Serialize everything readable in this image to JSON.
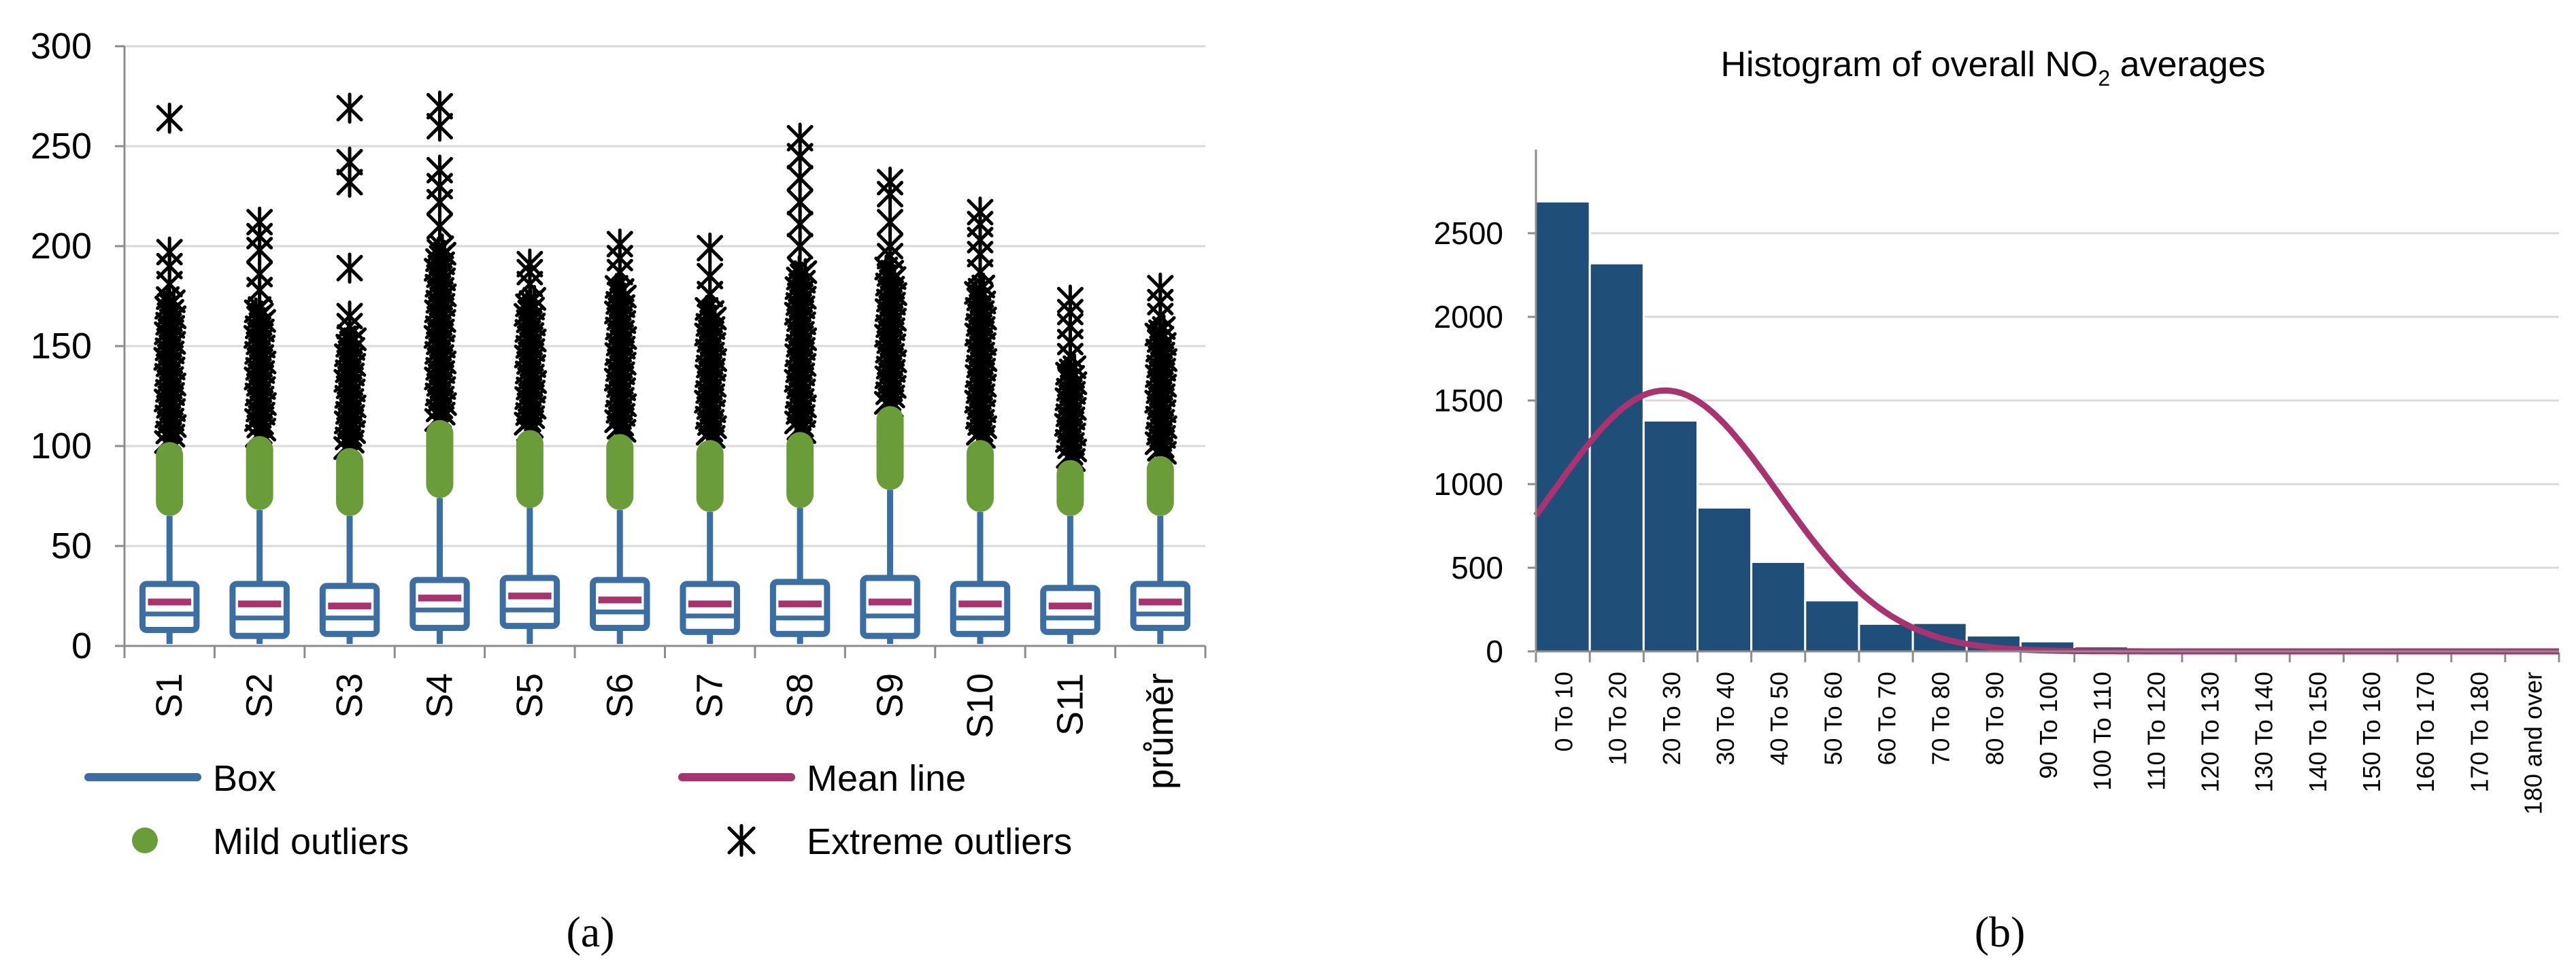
{
  "colors": {
    "box": "#3b6fa3",
    "mean": "#a8336e",
    "mild": "#6b9c3a",
    "extreme": "#000000",
    "bar": "#1f4e79",
    "bar_edge": "#ffffff",
    "curve": "#a8336e",
    "grid": "#d9d9d9",
    "axis": "#8c8c8c"
  },
  "captions": {
    "a": "(a)",
    "b": "(b)"
  },
  "chart_data": [
    {
      "type": "box",
      "title": "",
      "xlabel": "",
      "ylabel": "",
      "ylim": [
        0,
        300
      ],
      "yticks": [
        0,
        50,
        100,
        150,
        200,
        250,
        300
      ],
      "grid": true,
      "categories": [
        "S1",
        "S2",
        "S3",
        "S4",
        "S5",
        "S6",
        "S7",
        "S8",
        "S9",
        "S10",
        "S11",
        "průměr"
      ],
      "boxes": [
        {
          "q1": 8,
          "median": 16,
          "q3": 31,
          "mean": 22,
          "whisker_low": 1,
          "whisker_high": 65,
          "mild_low": 65,
          "mild_high": 102,
          "dense_top": 175,
          "extreme": [
            181,
            190,
            197,
            264
          ]
        },
        {
          "q1": 5,
          "median": 14,
          "q3": 31,
          "mean": 21,
          "whisker_low": 1,
          "whisker_high": 68,
          "mild_low": 68,
          "mild_high": 105,
          "dense_top": 170,
          "extreme": [
            178,
            186,
            198,
            205,
            212
          ]
        },
        {
          "q1": 6,
          "median": 14,
          "q3": 30,
          "mean": 20,
          "whisker_low": 1,
          "whisker_high": 65,
          "mild_low": 65,
          "mild_high": 99,
          "dense_top": 155,
          "extreme": [
            160,
            165,
            189,
            232,
            242,
            269
          ]
        },
        {
          "q1": 9,
          "median": 18,
          "q3": 33,
          "mean": 24,
          "whisker_low": 1,
          "whisker_high": 74,
          "mild_low": 74,
          "mild_high": 113,
          "dense_top": 200,
          "extreme": [
            210,
            222,
            230,
            238,
            260,
            270
          ]
        },
        {
          "q1": 10,
          "median": 18,
          "q3": 34,
          "mean": 25,
          "whisker_low": 1,
          "whisker_high": 69,
          "mild_low": 69,
          "mild_high": 108,
          "dense_top": 175,
          "extreme": [
            181,
            187,
            191
          ]
        },
        {
          "q1": 9,
          "median": 17,
          "q3": 33,
          "mean": 23,
          "whisker_low": 1,
          "whisker_high": 68,
          "mild_low": 68,
          "mild_high": 106,
          "dense_top": 180,
          "extreme": [
            187,
            194,
            201
          ]
        },
        {
          "q1": 7,
          "median": 15,
          "q3": 31,
          "mean": 21,
          "whisker_low": 1,
          "whisker_high": 67,
          "mild_low": 67,
          "mild_high": 103,
          "dense_top": 170,
          "extreme": [
            176,
            185,
            199
          ]
        },
        {
          "q1": 6,
          "median": 14,
          "q3": 32,
          "mean": 21,
          "whisker_low": 1,
          "whisker_high": 69,
          "mild_low": 69,
          "mild_high": 107,
          "dense_top": 190,
          "extreme": [
            200,
            211,
            222,
            234,
            245,
            254
          ]
        },
        {
          "q1": 5,
          "median": 15,
          "q3": 34,
          "mean": 22,
          "whisker_low": 1,
          "whisker_high": 78,
          "mild_low": 78,
          "mild_high": 120,
          "dense_top": 190,
          "extreme": [
            195,
            200,
            212,
            226,
            232
          ]
        },
        {
          "q1": 6,
          "median": 14,
          "q3": 31,
          "mean": 21,
          "whisker_low": 1,
          "whisker_high": 67,
          "mild_low": 67,
          "mild_high": 103,
          "dense_top": 180,
          "extreme": [
            187,
            196,
            203,
            211,
            217
          ]
        },
        {
          "q1": 7,
          "median": 14,
          "q3": 29,
          "mean": 20,
          "whisker_low": 1,
          "whisker_high": 65,
          "mild_low": 65,
          "mild_high": 93,
          "dense_top": 140,
          "extreme": [
            145,
            152,
            160,
            167,
            173
          ]
        },
        {
          "q1": 9,
          "median": 16,
          "q3": 31,
          "mean": 22,
          "whisker_low": 1,
          "whisker_high": 65,
          "mild_low": 65,
          "mild_high": 95,
          "dense_top": 160,
          "extreme": [
            165,
            172,
            179
          ]
        }
      ],
      "legend": {
        "placement": "bottom",
        "entries": [
          "Box",
          "Mean line",
          "Mild outliers",
          "Extreme outliers"
        ]
      }
    },
    {
      "type": "bar",
      "title": "Histogram of overall NO",
      "title_subscript": "2",
      "title_suffix": " averages",
      "xlabel": "",
      "ylabel": "",
      "ylim": [
        0,
        3000
      ],
      "yticks": [
        0,
        500,
        1000,
        1500,
        2000,
        2500
      ],
      "grid": true,
      "categories": [
        "0 To 10",
        "10 To 20",
        "20 To 30",
        "30 To 40",
        "40 To 50",
        "50 To 60",
        "60 To 70",
        "70 To 80",
        "80 To 90",
        "90 To 100",
        "100 To 110",
        "110 To 120",
        "120 To 130",
        "130 To 140",
        "140 To 150",
        "150 To 160",
        "160 To 170",
        "170 To 180",
        "180 and over"
      ],
      "values": [
        2690,
        2320,
        1380,
        860,
        535,
        305,
        165,
        170,
        95,
        60,
        30,
        22,
        5,
        3,
        2,
        1,
        1,
        1,
        1
      ],
      "curve": {
        "type": "normal",
        "mean": 24,
        "sd": 21,
        "peak": 1560
      }
    }
  ]
}
